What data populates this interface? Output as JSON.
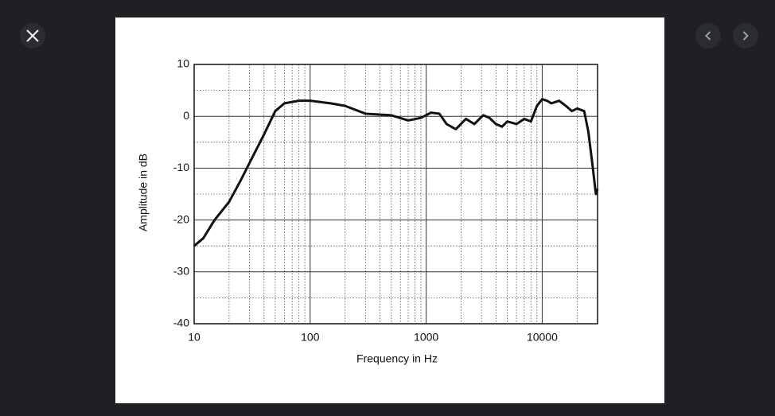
{
  "chart_data": {
    "type": "line",
    "x_label": "Frequency  in Hz",
    "y_label": "Amplitude in dB",
    "xscale": "log",
    "xlim": [
      10,
      30000
    ],
    "xticks": [
      10,
      100,
      1000,
      10000
    ],
    "ylim": [
      -40,
      10
    ],
    "yticks": [
      -40,
      -30,
      -20,
      -10,
      0,
      10
    ],
    "grid": true,
    "minor_grid": true,
    "x": [
      10,
      12,
      15,
      20,
      25,
      30,
      40,
      50,
      60,
      80,
      100,
      150,
      200,
      300,
      500,
      700,
      900,
      1100,
      1300,
      1500,
      1800,
      2200,
      2600,
      3100,
      3500,
      4000,
      4500,
      5000,
      6000,
      7000,
      8000,
      9000,
      10000,
      11000,
      12000,
      14000,
      16000,
      18000,
      20000,
      23000,
      25000,
      27000,
      29000,
      30000
    ],
    "series": [
      {
        "color": "#111111",
        "values": [
          -25,
          -23.5,
          -20,
          -16.5,
          -12.5,
          -9,
          -3.5,
          1,
          2.5,
          3,
          3,
          2.5,
          2,
          0.5,
          0.2,
          -0.8,
          -0.3,
          0.7,
          0.5,
          -1.5,
          -2.5,
          -0.5,
          -1.5,
          0.2,
          -0.3,
          -1.5,
          -2,
          -1,
          -1.5,
          -0.5,
          -1,
          2,
          3.3,
          3,
          2.5,
          3,
          2,
          1,
          1.5,
          1,
          -3,
          -9,
          -15,
          -14
        ]
      }
    ]
  }
}
